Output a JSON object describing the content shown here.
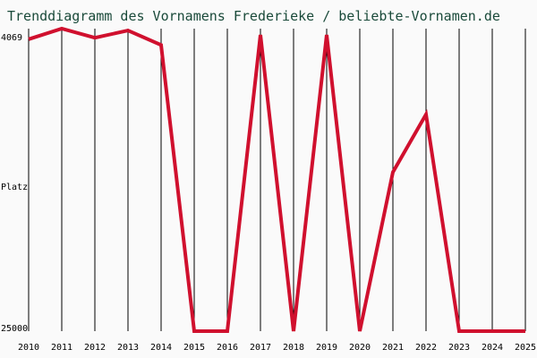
{
  "chart_data": {
    "type": "line",
    "title": "Trenddiagramm des Vornamens Frederieke / beliebte-Vornamen.de",
    "ylabel": "Platz",
    "y_top_label": "4069",
    "y_bottom_label": "25000",
    "x": [
      "2010",
      "2011",
      "2012",
      "2013",
      "2014",
      "2015",
      "2016",
      "2017",
      "2018",
      "2019",
      "2020",
      "2021",
      "2022",
      "2023",
      "2024",
      "2025"
    ],
    "series": [
      {
        "values": [
          4800,
          4069,
          4700,
          4200,
          5200,
          25000,
          25000,
          4500,
          25000,
          4500,
          25000,
          14000,
          10000,
          25000,
          25000,
          25000
        ]
      }
    ],
    "ylim": [
      4069,
      25000
    ],
    "y_inverted": true,
    "line_color": "#d0102e",
    "grid": "vertical"
  }
}
